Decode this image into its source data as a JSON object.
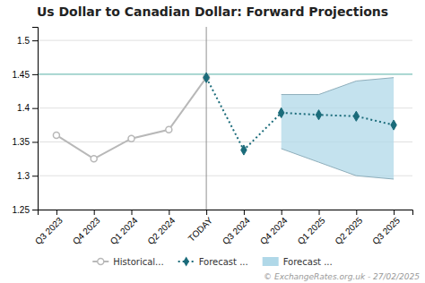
{
  "chart_data": {
    "type": "line",
    "title": "Us Dollar to Canadian Dollar: Forward Projections",
    "annotations": [
      "© ExchangeRates.org.uk - 27/02/2025"
    ],
    "categories": [
      "Q3 2023",
      "Q4 2023",
      "Q1 2024",
      "Q2 2024",
      "TODAY",
      "Q3 2024",
      "Q4 2024",
      "Q1 2025",
      "Q2 2025",
      "Q3 2025"
    ],
    "ylim": [
      1.25,
      1.52
    ],
    "yticks": [
      1.25,
      1.3,
      1.35,
      1.4,
      1.45,
      1.5
    ],
    "grid": true,
    "legend": "bottom",
    "reference_lines": [
      {
        "y": 1.45,
        "color": "#80c8c0"
      },
      {
        "x": "TODAY",
        "color": "#909090"
      }
    ],
    "series": [
      {
        "name": "Historical...",
        "color": "#b8b8b8",
        "marker": "circle",
        "line_style": "solid",
        "values": [
          1.36,
          1.325,
          1.355,
          1.368,
          1.445,
          null,
          null,
          null,
          null,
          null
        ]
      },
      {
        "name": "Forecast ...",
        "color": "#1a6b7a",
        "marker": "diamond",
        "line_style": "dotted",
        "values": [
          null,
          null,
          null,
          null,
          1.445,
          1.338,
          1.393,
          1.39,
          1.388,
          1.375
        ]
      },
      {
        "name": "Forecast ...",
        "type": "band",
        "color": "#b0d8e8",
        "lower": [
          null,
          null,
          null,
          null,
          null,
          null,
          1.34,
          1.32,
          1.3,
          1.295
        ],
        "upper": [
          null,
          null,
          null,
          null,
          null,
          null,
          1.42,
          1.42,
          1.44,
          1.445
        ]
      }
    ]
  }
}
